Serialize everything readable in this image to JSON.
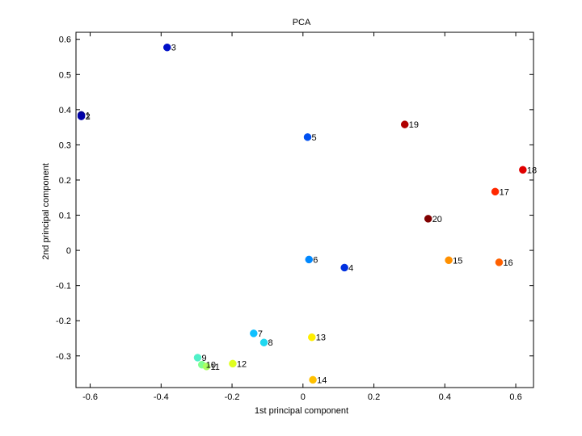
{
  "chart_data": {
    "type": "scatter",
    "title": "PCA",
    "xlabel": "1st principal component",
    "ylabel": "2nd principal component",
    "xlim": [
      -0.64,
      0.65
    ],
    "ylim": [
      -0.39,
      0.62
    ],
    "xticks": [
      -0.6,
      -0.4,
      -0.2,
      0,
      0.2,
      0.4,
      0.6
    ],
    "xtick_labels": [
      "-0.6",
      "-0.4",
      "-0.2",
      "0",
      "0.2",
      "0.4",
      "0.6"
    ],
    "yticks": [
      -0.3,
      -0.2,
      -0.1,
      0,
      0.1,
      0.2,
      0.3,
      0.4,
      0.5,
      0.6
    ],
    "ytick_labels": [
      "-0.3",
      "-0.2",
      "-0.1",
      "0",
      "0.1",
      "0.2",
      "0.3",
      "0.4",
      "0.5",
      "0.6"
    ],
    "grid": false,
    "colormap": "jet",
    "points": [
      {
        "label": "1",
        "x": -0.625,
        "y": 0.385,
        "color": "#00008f"
      },
      {
        "label": "2",
        "x": -0.625,
        "y": 0.381,
        "color": "#0000a8"
      },
      {
        "label": "3",
        "x": -0.383,
        "y": 0.577,
        "color": "#0010c8"
      },
      {
        "label": "4",
        "x": 0.117,
        "y": -0.049,
        "color": "#0030e0"
      },
      {
        "label": "5",
        "x": 0.013,
        "y": 0.322,
        "color": "#0050f0"
      },
      {
        "label": "6",
        "x": 0.017,
        "y": -0.026,
        "color": "#0088ff"
      },
      {
        "label": "7",
        "x": -0.139,
        "y": -0.236,
        "color": "#10c0ff"
      },
      {
        "label": "8",
        "x": -0.11,
        "y": -0.262,
        "color": "#20d8f0"
      },
      {
        "label": "9",
        "x": -0.297,
        "y": -0.305,
        "color": "#50f0c8"
      },
      {
        "label": "10",
        "x": -0.285,
        "y": -0.325,
        "color": "#80ff90"
      },
      {
        "label": "11",
        "x": -0.272,
        "y": -0.33,
        "color": "#a8ff60"
      },
      {
        "label": "12",
        "x": -0.198,
        "y": -0.322,
        "color": "#e0ff20"
      },
      {
        "label": "13",
        "x": 0.025,
        "y": -0.247,
        "color": "#ffee00"
      },
      {
        "label": "14",
        "x": 0.028,
        "y": -0.368,
        "color": "#ffc000"
      },
      {
        "label": "15",
        "x": 0.411,
        "y": -0.028,
        "color": "#ff9000"
      },
      {
        "label": "16",
        "x": 0.553,
        "y": -0.034,
        "color": "#ff6000"
      },
      {
        "label": "17",
        "x": 0.542,
        "y": 0.167,
        "color": "#ff2800"
      },
      {
        "label": "18",
        "x": 0.62,
        "y": 0.229,
        "color": "#e00000"
      },
      {
        "label": "19",
        "x": 0.287,
        "y": 0.358,
        "color": "#b00000"
      },
      {
        "label": "20",
        "x": 0.353,
        "y": 0.09,
        "color": "#800000"
      }
    ]
  }
}
